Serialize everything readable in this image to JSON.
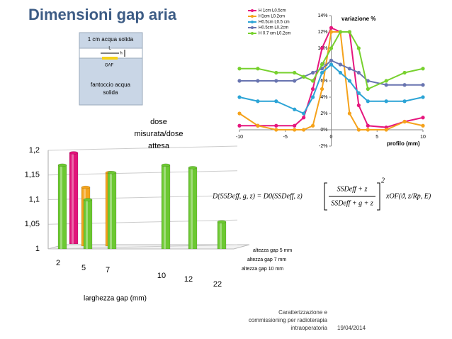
{
  "title": "Dimensioni gap aria",
  "diagram": {
    "top_label": "1 cm acqua solida",
    "length_label": "L",
    "height_label": "h",
    "gap_label": "GAF",
    "bottom_label_lines": [
      "fantoccio acqua",
      "solida"
    ]
  },
  "chart_data": [
    {
      "type": "line",
      "ylabel": "variazione %",
      "xlabel": "profilo (mm)",
      "x": [
        -10,
        -8,
        -6,
        -4,
        -3,
        -2,
        -1,
        0,
        1,
        2,
        3,
        4,
        6,
        8,
        10
      ],
      "xlim": [
        -10,
        10
      ],
      "xticks": [
        -10,
        -5,
        0,
        5,
        10
      ],
      "ylim": [
        -2,
        14
      ],
      "yticks": [
        {
          "value": -2,
          "label": "-2%"
        },
        {
          "value": 0,
          "label": "0%"
        },
        {
          "value": 2,
          "label": "2%"
        },
        {
          "value": 4,
          "label": "4%"
        },
        {
          "value": 6,
          "label": "6%"
        },
        {
          "value": 8,
          "label": "8%"
        },
        {
          "value": 10,
          "label": "10%"
        },
        {
          "value": 12,
          "label": "12%"
        },
        {
          "value": 14,
          "label": "14%"
        }
      ],
      "series": [
        {
          "name": "H 1cm L0.5cm",
          "color": "#e6177e",
          "values": [
            0.5,
            0.5,
            0.5,
            0.5,
            1.5,
            5,
            10,
            12.5,
            12,
            12,
            3,
            0.5,
            0.3,
            1,
            1.5
          ]
        },
        {
          "name": "H1cm L0.2cm",
          "color": "#f5a21b",
          "values": [
            2,
            0.5,
            0,
            0,
            0,
            0.5,
            5,
            12,
            12,
            2,
            0,
            0,
            0,
            1,
            0.5
          ]
        },
        {
          "name": "H0.5cm L0.5 cm",
          "color": "#2ca4d6",
          "values": [
            4,
            3.5,
            3.5,
            2.5,
            2,
            4,
            7,
            8,
            7,
            6,
            4.5,
            3.5,
            3.5,
            3.5,
            4
          ]
        },
        {
          "name": "H0.5cm L0.2cm",
          "color": "#6874b0",
          "values": [
            6,
            6,
            6,
            6,
            6.5,
            7,
            7.5,
            8.5,
            8,
            7.5,
            7,
            6,
            5.5,
            5.5,
            5.5
          ]
        },
        {
          "name": "H 0.7 cm L0.2cm",
          "color": "#77d12e",
          "values": [
            7.5,
            7.5,
            7,
            7,
            6.5,
            6,
            8,
            10,
            12,
            12,
            10,
            5,
            6,
            7,
            7.5
          ]
        }
      ]
    },
    {
      "type": "bar3d",
      "title_lines": [
        "dose",
        "misurata/dose",
        "attesa"
      ],
      "xlabel": "larghezza gap (mm)",
      "categories": [
        "2",
        "5",
        "7",
        "10",
        "12",
        "22"
      ],
      "ylim": [
        1,
        1.2
      ],
      "yticks": [
        1,
        {
          "value": 1.05,
          "label": "1,05"
        },
        {
          "value": 1.1,
          "label": "1,1"
        },
        {
          "value": 1.15,
          "label": "1,15"
        },
        {
          "value": 1.2,
          "label": "1,2"
        }
      ],
      "series": [
        {
          "name": "altezza gap 5 mm",
          "color": "#e0147a",
          "values": [
            1.195,
            null,
            null,
            null,
            null,
            null
          ]
        },
        {
          "name": "altezza gap 7 mm",
          "color": "#f4a41c",
          "values": [
            null,
            1.125,
            1.155,
            null,
            null,
            null
          ]
        },
        {
          "name": "altezza gap 10 mm",
          "color": "#6cc832",
          "values": [
            1.17,
            1.1,
            1.155,
            1.17,
            1.165,
            1.055
          ]
        }
      ]
    }
  ],
  "formula": {
    "lhs": "D(SSDeff, g, z) = D0(SSDeff, z)",
    "numerator": "SSDeff + z",
    "denominator": "SSDeff + g + z",
    "exponent": "2",
    "rhs": "xOF(ϑ, z/Rp, E)"
  },
  "footer": {
    "lines": [
      "Caratterizzazione e",
      "commissioning per radioterapia",
      "intraoperatoria"
    ],
    "date": "19/04/2014"
  }
}
